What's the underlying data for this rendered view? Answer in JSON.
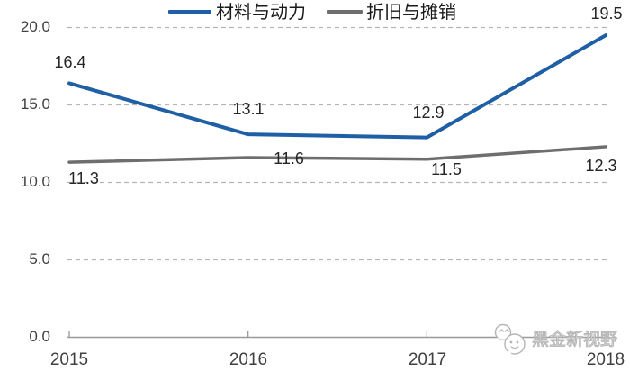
{
  "chart_data": {
    "type": "line",
    "title": "",
    "categories": [
      "2015",
      "2016",
      "2017",
      "2018"
    ],
    "series": [
      {
        "name": "材料与动力",
        "color": "#1f5fa5",
        "stroke_width": 4,
        "values": [
          16.4,
          13.1,
          12.9,
          19.5
        ],
        "point_labels": [
          "16.4",
          "13.1",
          "12.9",
          "19.5"
        ]
      },
      {
        "name": "折旧与摊销",
        "color": "#6e6e6e",
        "stroke_width": 3.5,
        "values": [
          11.3,
          11.6,
          11.5,
          12.3
        ],
        "point_labels": [
          "11.3",
          "11.6",
          "11.5",
          "12.3"
        ]
      }
    ],
    "xlabel": "",
    "ylabel": "",
    "ylim": [
      0,
      20
    ],
    "yticks": [
      0,
      5,
      10,
      15,
      20
    ],
    "ytick_labels_top_down": [
      "20.0",
      "15.0",
      "10.0",
      "5.0",
      "0.0"
    ],
    "grid": "horizontal-dashed",
    "legend_position": "top-center"
  },
  "watermark": {
    "text": "黑金新视野",
    "icon": "wechat-chat-bubbles-icon"
  },
  "colors": {
    "grid": "#b5b5b5",
    "axis": "#999999",
    "tick": "#999999",
    "data_label_text": "#262626",
    "axis_text": "#404040",
    "watermark": "#b5b5b5"
  }
}
